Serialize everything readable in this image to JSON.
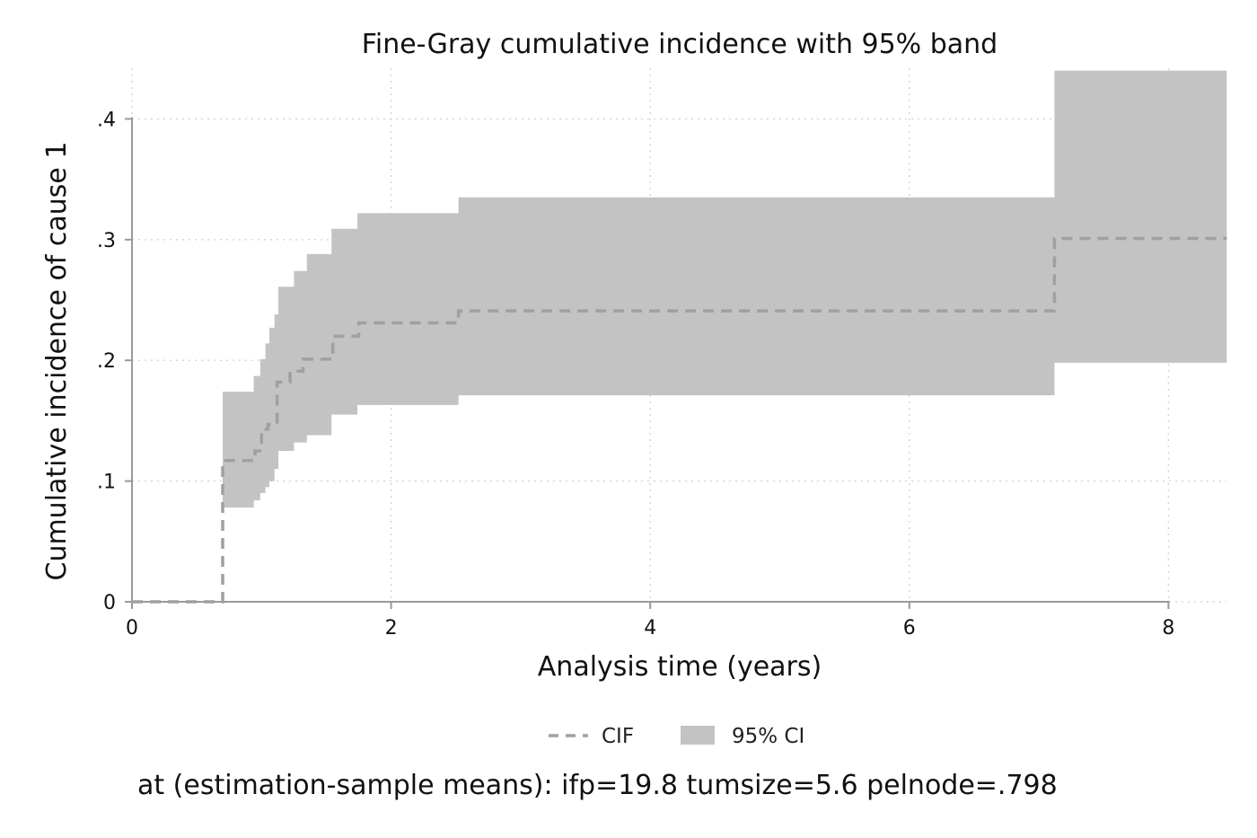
{
  "chart_data": {
    "type": "line",
    "title": "Fine-Gray cumulative incidence with 95% band",
    "xlabel": "Analysis time (years)",
    "ylabel": "Cumulative incidence of cause 1",
    "xlim": [
      0,
      8.45
    ],
    "ylim": [
      0,
      0.44
    ],
    "xticks": [
      0,
      2,
      4,
      6,
      8
    ],
    "xtick_labels": [
      "0",
      "2",
      "4",
      "6",
      "8"
    ],
    "yticks": [
      0,
      0.1,
      0.2,
      0.3,
      0.4
    ],
    "ytick_labels": [
      "0",
      ".1",
      ".2",
      ".3",
      ".4"
    ],
    "grid": true,
    "legend_position": "bottom",
    "note": "at (estimation-sample means): ifp=19.8 tumsize=5.6 pelnode=.798",
    "series": [
      {
        "name": "CIF",
        "style": "dashed-step",
        "color": "#a0a0a0",
        "x": [
          0,
          0.7,
          0.95,
          1.0,
          1.05,
          1.12,
          1.22,
          1.32,
          1.55,
          1.75,
          2.52,
          7.12,
          8.45
        ],
        "y": [
          0,
          0.117,
          0.125,
          0.143,
          0.147,
          0.182,
          0.191,
          0.201,
          0.22,
          0.231,
          0.241,
          0.301,
          0.301
        ]
      },
      {
        "name": "95% CI",
        "style": "band",
        "color": "#c3c3c3",
        "x": [
          0.7,
          0.94,
          0.99,
          1.03,
          1.06,
          1.1,
          1.13,
          1.25,
          1.35,
          1.54,
          1.74,
          2.52,
          7.12,
          8.45
        ],
        "lower": [
          0.078,
          0.084,
          0.09,
          0.095,
          0.1,
          0.11,
          0.125,
          0.132,
          0.138,
          0.155,
          0.163,
          0.171,
          0.198,
          0.198
        ],
        "upper": [
          0.174,
          0.187,
          0.201,
          0.214,
          0.227,
          0.238,
          0.261,
          0.274,
          0.288,
          0.309,
          0.322,
          0.335,
          0.44,
          0.44
        ]
      }
    ]
  }
}
